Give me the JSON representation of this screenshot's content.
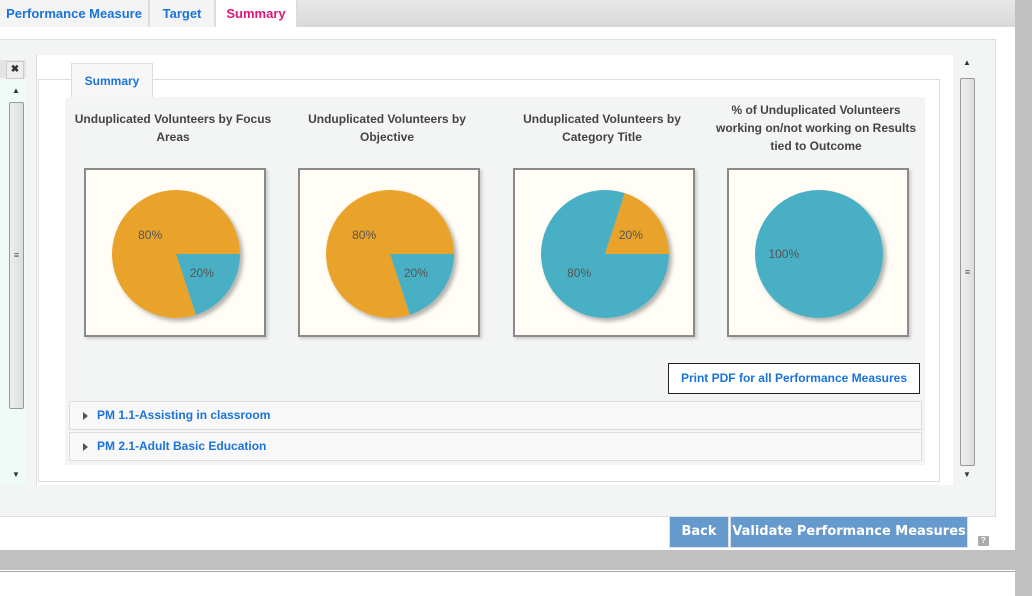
{
  "tabs": [
    {
      "label": "Performance Measure"
    },
    {
      "label": "Target"
    },
    {
      "label": "Summary",
      "active": true
    }
  ],
  "section_tab": "Summary",
  "colors": {
    "orange": "#E9A32A",
    "blue": "#4AAFC4",
    "active_tab": "#E0157A",
    "link": "#1A73D9",
    "button": "#6699CC"
  },
  "chart_data": [
    {
      "type": "pie",
      "title": "Unduplicated Volunteers by Focus Areas",
      "slices": [
        {
          "value": 20,
          "label": "20%",
          "color": "#4AAFC4"
        },
        {
          "value": 80,
          "label": "80%",
          "color": "#E9A32A"
        }
      ]
    },
    {
      "type": "pie",
      "title": "Unduplicated Volunteers by Objective",
      "slices": [
        {
          "value": 20,
          "label": "20%",
          "color": "#4AAFC4"
        },
        {
          "value": 80,
          "label": "80%",
          "color": "#E9A32A"
        }
      ]
    },
    {
      "type": "pie",
      "title": "Unduplicated Volunteers by Category Title",
      "slices": [
        {
          "value": 80,
          "label": "80%",
          "color": "#4AAFC4"
        },
        {
          "value": 20,
          "label": "20%",
          "color": "#E9A32A"
        }
      ]
    },
    {
      "type": "pie",
      "title": "% of Unduplicated Volunteers working on/not working on Results tied to Outcome",
      "slices": [
        {
          "value": 100,
          "label": "100%",
          "color": "#4AAFC4"
        }
      ]
    }
  ],
  "print_button": "Print PDF for all Performance Measures",
  "accordion": [
    {
      "label": "PM 1.1-Assisting in classroom"
    },
    {
      "label": "PM 2.1-Adult Basic Education"
    }
  ],
  "buttons": {
    "back": "Back",
    "validate": "Validate Performance Measures",
    "help": "?"
  },
  "icons": {
    "close": "close-icon",
    "scroll_thumb": "≡"
  }
}
